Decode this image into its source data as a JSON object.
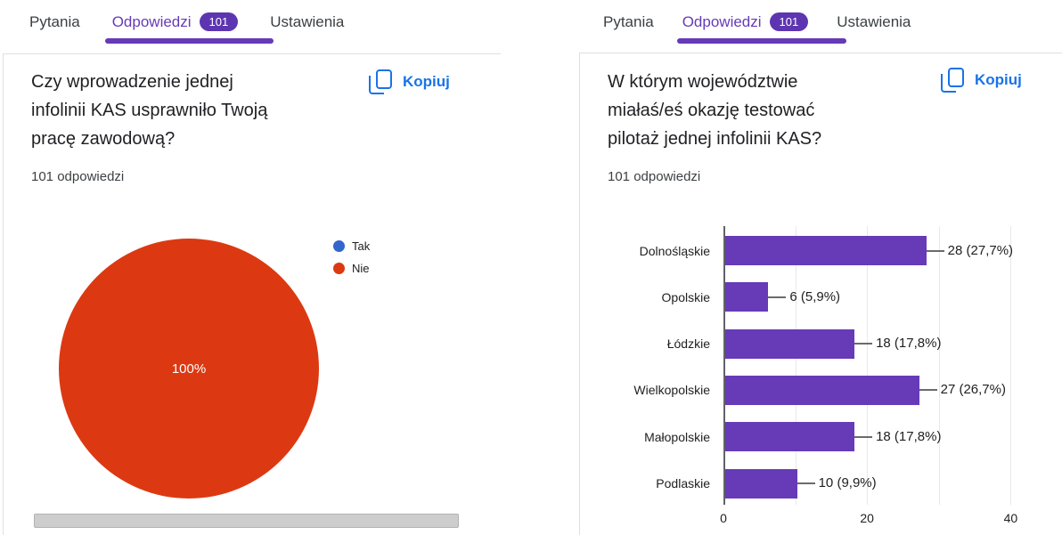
{
  "colors": {
    "accent_purple": "#673ab7",
    "badge_purple": "#5e35b1",
    "link_blue": "#1a73e8",
    "pie_red": "#dc3912",
    "legend_blue": "#3366cc",
    "bar_purple": "#673ab7"
  },
  "left_panel": {
    "tabs": {
      "items": [
        {
          "label": "Pytania",
          "active": false
        },
        {
          "label": "Odpowiedzi",
          "active": true,
          "badge": "101"
        },
        {
          "label": "Ustawienia",
          "active": false
        }
      ]
    },
    "question": {
      "title": "Czy wprowadzenie jednej infolinii KAS usprawniło Twoją pracę zawodową?",
      "responses_count": "101 odpowiedzi",
      "copy_label": "Kopiuj"
    },
    "chart_data": {
      "type": "pie",
      "title": "Czy wprowadzenie jednej infolinii KAS usprawniło Twoją pracę zawodową?",
      "center_label": "100%",
      "legend_position": "right",
      "slices": [
        {
          "label": "Tak",
          "percent": 0,
          "color": "#3366cc"
        },
        {
          "label": "Nie",
          "percent": 100,
          "color": "#dc3912"
        }
      ]
    }
  },
  "right_panel": {
    "tabs": {
      "items": [
        {
          "label": "Pytania",
          "active": false
        },
        {
          "label": "Odpowiedzi",
          "active": true,
          "badge": "101"
        },
        {
          "label": "Ustawienia",
          "active": false
        }
      ]
    },
    "question": {
      "title": "W którym województwie miałaś/eś okazję testować pilotaż jednej infolinii KAS?",
      "responses_count": "101 odpowiedzi",
      "copy_label": "Kopiuj"
    },
    "chart_data": {
      "type": "bar",
      "orientation": "horizontal",
      "title": "W którym województwie miałaś/eś okazję testować pilotaż jednej infolinii KAS?",
      "categories": [
        "Dolnośląskie",
        "Opolskie",
        "Łódzkie",
        "Wielkopolskie",
        "Małopolskie",
        "Podlaskie"
      ],
      "values": [
        28,
        6,
        18,
        27,
        18,
        10
      ],
      "value_labels": [
        "28 (27,7%)",
        "6 (5,9%)",
        "18 (17,8%)",
        "27 (26,7%)",
        "18 (17,8%)",
        "10 (9,9%)"
      ],
      "bar_color": "#673ab7",
      "xlim": [
        0,
        40
      ],
      "x_ticks": [
        0,
        20,
        40
      ],
      "gridlines": [
        10,
        20,
        30,
        40
      ],
      "grid": true
    }
  }
}
